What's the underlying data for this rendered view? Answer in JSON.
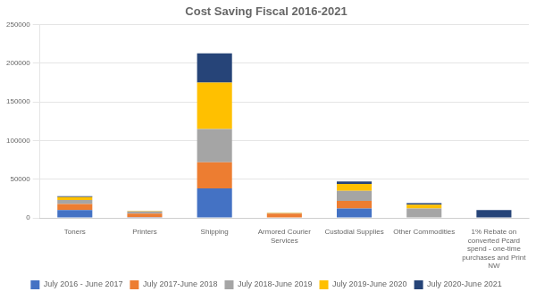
{
  "chart_data": {
    "type": "bar",
    "title": "Cost Saving Fiscal 2016-2021",
    "categories": [
      "Toners",
      "Printers",
      "Shipping",
      "Armored Courier\nServices",
      "Custodial Supplies",
      "Other Commodities",
      "1% Rebate on\nconverted Pcard\nspend - one-time\npurchases and Print\nNW"
    ],
    "series": [
      {
        "name": "July 2016 - June 2017",
        "color": "#4472c4",
        "values": [
          10000,
          1000,
          38000,
          0,
          12000,
          0,
          0
        ]
      },
      {
        "name": "July 2017-June 2018",
        "color": "#ed7d31",
        "values": [
          8000,
          4500,
          34000,
          5500,
          10000,
          0,
          0
        ]
      },
      {
        "name": "July 2018-June 2019",
        "color": "#a5a5a5",
        "values": [
          5000,
          3000,
          43000,
          500,
          13000,
          12000,
          0
        ]
      },
      {
        "name": "July 2019-June 2020",
        "color": "#ffc000",
        "values": [
          4000,
          500,
          60000,
          500,
          9000,
          5000,
          0
        ]
      },
      {
        "name": "July 2020-June 2021",
        "color": "#264478",
        "values": [
          1000,
          0,
          38000,
          0,
          3000,
          2000,
          10000
        ]
      }
    ],
    "stacked": true,
    "ylim": [
      0,
      250000
    ],
    "yticks": [
      0,
      50000,
      100000,
      150000,
      200000,
      250000
    ],
    "grid": true,
    "legend": "bottom"
  }
}
